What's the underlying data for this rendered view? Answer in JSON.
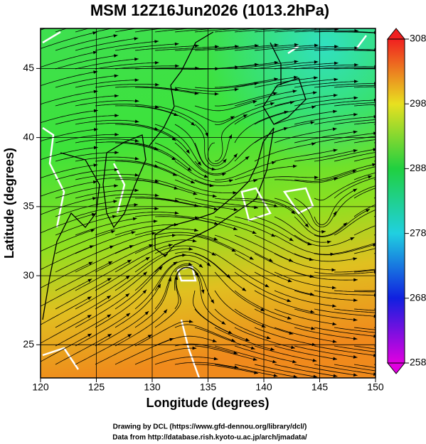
{
  "chart_data": {
    "type": "map",
    "title": "MSM 12Z16Jun2026 (1013.2hPa)",
    "x_label": "Longitude (degrees)",
    "y_label": "Latitude  (degrees)",
    "xlim": [
      120,
      150
    ],
    "xticks": [
      120,
      125,
      130,
      135,
      140,
      145,
      150
    ],
    "ylim": [
      22.6,
      47.9
    ],
    "yticks": [
      25,
      30,
      35,
      40,
      45
    ],
    "colorbar": {
      "lim": [
        258,
        308
      ],
      "ticks": [
        258,
        268,
        278,
        288,
        298,
        308
      ]
    },
    "credits": [
      "Drawing by DCL (https://www.gfd-dennou.org/library/dcl/)",
      "Data from http://database.rish.kyoto-u.ac.jp/arch/jmadata/"
    ]
  }
}
